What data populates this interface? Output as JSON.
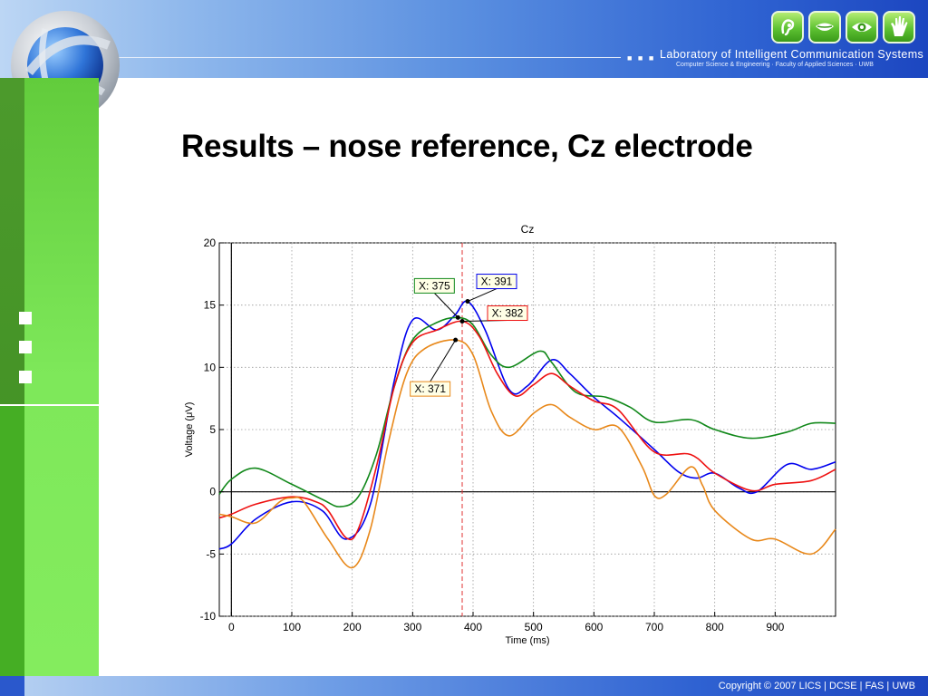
{
  "slide": {
    "title": "Results – nose reference, Cz electrode",
    "footer": "Copyright © 2007 LICS | DCSE | FAS | UWB",
    "lab_squares": "■ ■ ■",
    "lab_title": "Laboratory of Intelligent Communication Systems",
    "lab_subtitle": "Computer Science & Engineering · Faculty of Applied Sciences · UWB",
    "header_icons": [
      "ear-icon",
      "mouth-icon",
      "eye-icon",
      "hand-icon"
    ],
    "colors": {
      "header": "#2f63d2",
      "sidebar": "#7ee85a",
      "icon": "#5ec232"
    }
  },
  "chart_data": {
    "type": "line",
    "title": "Cz",
    "xlabel": "Time (ms)",
    "ylabel": "Voltage (μV)",
    "xlim": [
      -20,
      1000
    ],
    "ylim": [
      -10,
      20
    ],
    "xticks": [
      0,
      100,
      200,
      300,
      400,
      500,
      600,
      700,
      800,
      900
    ],
    "yticks": [
      -10,
      -5,
      0,
      5,
      10,
      15,
      20
    ],
    "grid": true,
    "vline": {
      "x": 382,
      "color": "#e03030"
    },
    "series": [
      {
        "color": "#0000ee",
        "x": [
          -20,
          0,
          40,
          100,
          150,
          190,
          230,
          270,
          300,
          340,
          370,
          391,
          420,
          460,
          490,
          530,
          560,
          600,
          640,
          700,
          740,
          770,
          800,
          840,
          870,
          920,
          960,
          1000
        ],
        "y": [
          -4.6,
          -4.2,
          -2.2,
          -0.8,
          -1.5,
          -3.8,
          -1.0,
          9.0,
          13.8,
          13.0,
          14.2,
          15.3,
          13.0,
          8.2,
          8.5,
          10.6,
          9.5,
          7.6,
          6.0,
          3.4,
          1.6,
          1.1,
          1.5,
          0.3,
          0.0,
          2.2,
          1.8,
          2.4
        ]
      },
      {
        "color": "#11881a",
        "x": [
          -20,
          0,
          40,
          100,
          150,
          180,
          210,
          240,
          270,
          300,
          340,
          375,
          400,
          430,
          460,
          510,
          530,
          570,
          620,
          660,
          700,
          760,
          800,
          860,
          920,
          960,
          1000
        ],
        "y": [
          -0.2,
          1.0,
          1.9,
          0.6,
          -0.6,
          -1.2,
          -0.4,
          3.0,
          8.5,
          12.2,
          13.6,
          14.0,
          13.4,
          11.0,
          10.0,
          11.3,
          10.4,
          8.0,
          7.6,
          6.8,
          5.6,
          5.8,
          5.0,
          4.3,
          4.8,
          5.5,
          5.5
        ]
      },
      {
        "color": "#ee1111",
        "x": [
          -20,
          0,
          40,
          100,
          140,
          160,
          190,
          210,
          240,
          270,
          300,
          340,
          382,
          410,
          440,
          470,
          500,
          530,
          560,
          600,
          640,
          700,
          760,
          800,
          860,
          900,
          960,
          1000
        ],
        "y": [
          -2.1,
          -1.8,
          -1.0,
          -0.4,
          -0.8,
          -1.5,
          -3.7,
          -3.0,
          2.0,
          8.5,
          12.0,
          13.0,
          13.7,
          12.5,
          9.5,
          7.7,
          8.6,
          9.5,
          8.5,
          7.3,
          6.6,
          3.2,
          3.0,
          1.5,
          0.1,
          0.6,
          0.9,
          1.8
        ]
      },
      {
        "color": "#e8881a",
        "x": [
          -20,
          0,
          40,
          80,
          100,
          120,
          160,
          200,
          230,
          260,
          290,
          320,
          371,
          400,
          430,
          460,
          500,
          530,
          560,
          600,
          640,
          680,
          700,
          720,
          760,
          780,
          800,
          860,
          900,
          960,
          1000
        ],
        "y": [
          -1.8,
          -2.0,
          -2.5,
          -0.8,
          -0.5,
          -0.8,
          -3.8,
          -6.1,
          -3.0,
          4.0,
          9.5,
          11.5,
          12.2,
          11.0,
          6.5,
          4.5,
          6.3,
          7.0,
          6.0,
          5.0,
          5.2,
          2.0,
          -0.3,
          -0.2,
          2.0,
          0.5,
          -1.5,
          -3.8,
          -3.8,
          -5.0,
          -3.0
        ]
      }
    ],
    "datatips": [
      {
        "label": "X: 391",
        "x": 391,
        "y": 15.3,
        "color": "#0000ee"
      },
      {
        "label": "X: 375",
        "x": 375,
        "y": 14.0,
        "color": "#11881a"
      },
      {
        "label": "X: 382",
        "x": 382,
        "y": 13.7,
        "color": "#ee1111"
      },
      {
        "label": "X: 371",
        "x": 371,
        "y": 12.2,
        "color": "#e8881a"
      }
    ]
  }
}
